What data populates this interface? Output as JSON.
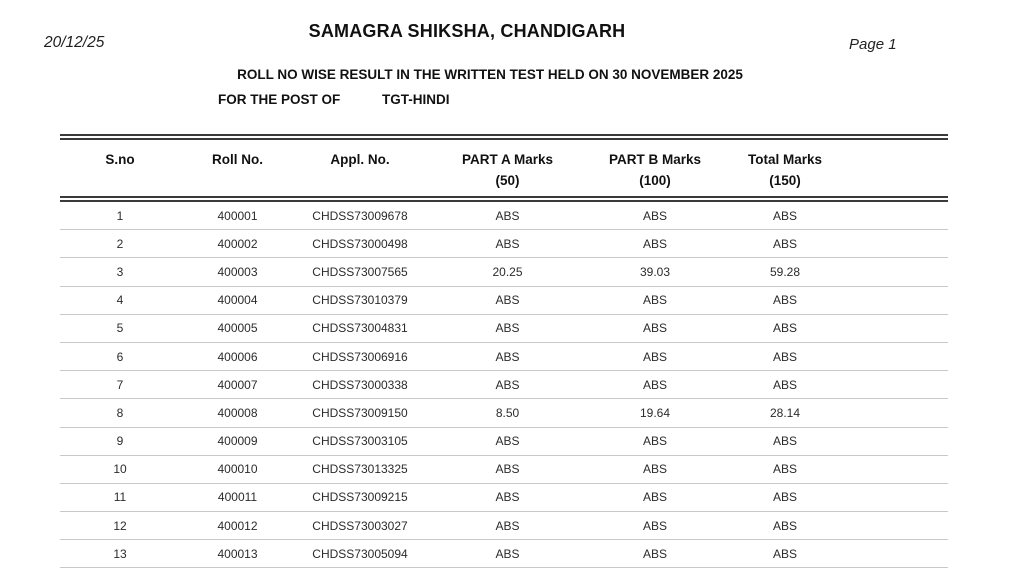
{
  "page_header": {
    "date": "20/12/25",
    "title": "SAMAGRA SHIKSHA, CHANDIGARH",
    "page_number": "Page 1",
    "subtitle": "ROLL NO WISE RESULT IN THE WRITTEN TEST HELD ON 30 NOVEMBER 2025",
    "post_label": "FOR THE POST OF",
    "post_value": "TGT-HINDI"
  },
  "table": {
    "columns": [
      {
        "label": "S.no",
        "sub": ""
      },
      {
        "label": "Roll No.",
        "sub": ""
      },
      {
        "label": "Appl. No.",
        "sub": ""
      },
      {
        "label": "PART A Marks",
        "sub": "(50)"
      },
      {
        "label": "PART B Marks",
        "sub": "(100)"
      },
      {
        "label": "Total Marks",
        "sub": "(150)"
      }
    ],
    "rows": [
      {
        "sno": "1",
        "roll_no": "400001",
        "appl_no": "CHDSS73009678",
        "part_a": "ABS",
        "part_b": "ABS",
        "total": "ABS"
      },
      {
        "sno": "2",
        "roll_no": "400002",
        "appl_no": "CHDSS73000498",
        "part_a": "ABS",
        "part_b": "ABS",
        "total": "ABS"
      },
      {
        "sno": "3",
        "roll_no": "400003",
        "appl_no": "CHDSS73007565",
        "part_a": "20.25",
        "part_b": "39.03",
        "total": "59.28"
      },
      {
        "sno": "4",
        "roll_no": "400004",
        "appl_no": "CHDSS73010379",
        "part_a": "ABS",
        "part_b": "ABS",
        "total": "ABS"
      },
      {
        "sno": "5",
        "roll_no": "400005",
        "appl_no": "CHDSS73004831",
        "part_a": "ABS",
        "part_b": "ABS",
        "total": "ABS"
      },
      {
        "sno": "6",
        "roll_no": "400006",
        "appl_no": "CHDSS73006916",
        "part_a": "ABS",
        "part_b": "ABS",
        "total": "ABS"
      },
      {
        "sno": "7",
        "roll_no": "400007",
        "appl_no": "CHDSS73000338",
        "part_a": "ABS",
        "part_b": "ABS",
        "total": "ABS"
      },
      {
        "sno": "8",
        "roll_no": "400008",
        "appl_no": "CHDSS73009150",
        "part_a": "8.50",
        "part_b": "19.64",
        "total": "28.14"
      },
      {
        "sno": "9",
        "roll_no": "400009",
        "appl_no": "CHDSS73003105",
        "part_a": "ABS",
        "part_b": "ABS",
        "total": "ABS"
      },
      {
        "sno": "10",
        "roll_no": "400010",
        "appl_no": "CHDSS73013325",
        "part_a": "ABS",
        "part_b": "ABS",
        "total": "ABS"
      },
      {
        "sno": "11",
        "roll_no": "400011",
        "appl_no": "CHDSS73009215",
        "part_a": "ABS",
        "part_b": "ABS",
        "total": "ABS"
      },
      {
        "sno": "12",
        "roll_no": "400012",
        "appl_no": "CHDSS73003027",
        "part_a": "ABS",
        "part_b": "ABS",
        "total": "ABS"
      },
      {
        "sno": "13",
        "roll_no": "400013",
        "appl_no": "CHDSS73005094",
        "part_a": "ABS",
        "part_b": "ABS",
        "total": "ABS"
      }
    ]
  },
  "colors": {
    "background": "#ffffff",
    "text": "#1e1e1e",
    "rule_dark": "#3a3a3a",
    "rule_light": "#c9c9c9"
  }
}
